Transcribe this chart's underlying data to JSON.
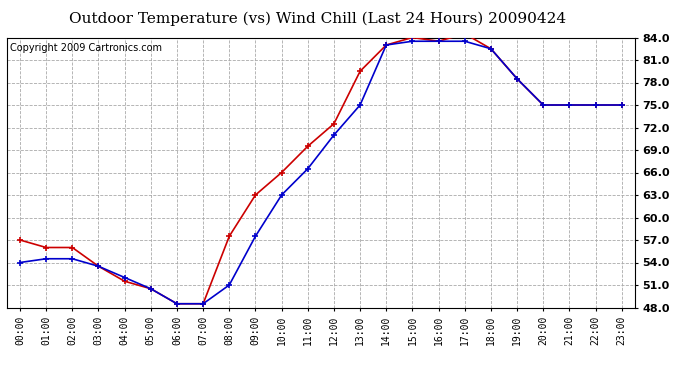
{
  "title": "Outdoor Temperature (vs) Wind Chill (Last 24 Hours) 20090424",
  "copyright": "Copyright 2009 Cartronics.com",
  "hours": [
    "00:00",
    "01:00",
    "02:00",
    "03:00",
    "04:00",
    "05:00",
    "06:00",
    "07:00",
    "08:00",
    "09:00",
    "10:00",
    "11:00",
    "12:00",
    "13:00",
    "14:00",
    "15:00",
    "16:00",
    "17:00",
    "18:00",
    "19:00",
    "20:00",
    "21:00",
    "22:00",
    "23:00"
  ],
  "temp": [
    57.0,
    56.0,
    56.0,
    53.5,
    51.5,
    50.5,
    48.5,
    48.5,
    57.5,
    63.0,
    66.0,
    69.5,
    72.5,
    79.5,
    83.0,
    84.0,
    83.5,
    84.5,
    82.5,
    78.5,
    75.0,
    75.0,
    75.0,
    75.0
  ],
  "windchill": [
    54.0,
    54.5,
    54.5,
    53.5,
    52.0,
    50.5,
    48.5,
    48.5,
    51.0,
    57.5,
    63.0,
    66.5,
    71.0,
    75.0,
    83.0,
    83.5,
    83.5,
    83.5,
    82.5,
    78.5,
    75.0,
    75.0,
    75.0,
    75.0
  ],
  "temp_color": "#cc0000",
  "windchill_color": "#0000cc",
  "bg_color": "#ffffff",
  "grid_color": "#aaaaaa",
  "ylim": [
    48.0,
    84.0
  ],
  "yticks": [
    48.0,
    51.0,
    54.0,
    57.0,
    60.0,
    63.0,
    66.0,
    69.0,
    72.0,
    75.0,
    78.0,
    81.0,
    84.0
  ],
  "title_fontsize": 11,
  "copyright_fontsize": 7,
  "ytick_fontsize": 8,
  "xtick_fontsize": 7
}
